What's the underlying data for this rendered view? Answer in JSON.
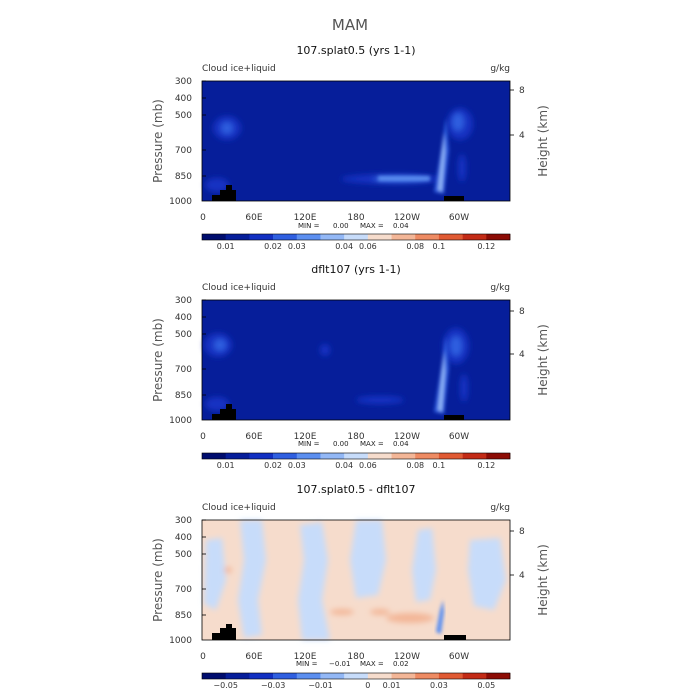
{
  "page_title": "MAM",
  "chart_data": [
    {
      "type": "heatmap",
      "title": "107.splat0.5 (yrs 1-1)",
      "left_label": "Cloud ice+liquid",
      "right_label": "g/kg",
      "ylabel": "Pressure (mb)",
      "ylabel_right": "Height (km)",
      "xticks": [
        "0",
        "60E",
        "120E",
        "180",
        "120W",
        "60W"
      ],
      "yticks": [
        "300",
        "400",
        "500",
        "700",
        "850",
        "1000"
      ],
      "yticks_right": [
        "8",
        "4"
      ],
      "min_label": "MIN =",
      "min_value": "0.00",
      "max_label": "MAX =",
      "max_value": "0.04",
      "colorbar_labels": [
        "0.01",
        "0.02",
        "0.03",
        "0.04",
        "0.06",
        "0.08",
        "0.1",
        "0.12"
      ],
      "colorbar_colors": [
        "#000d6e",
        "#061e9a",
        "#1230c2",
        "#2f5fe0",
        "#5c8ff0",
        "#93b8f6",
        "#c7dcfa",
        "#f6dccc",
        "#f3b697",
        "#ee8b63",
        "#e05a33",
        "#c32b16",
        "#8c0c05"
      ]
    },
    {
      "type": "heatmap",
      "title": "dflt107 (yrs 1-1)",
      "left_label": "Cloud ice+liquid",
      "right_label": "g/kg",
      "ylabel": "Pressure (mb)",
      "ylabel_right": "Height (km)",
      "xticks": [
        "0",
        "60E",
        "120E",
        "180",
        "120W",
        "60W"
      ],
      "yticks": [
        "300",
        "400",
        "500",
        "700",
        "850",
        "1000"
      ],
      "yticks_right": [
        "8",
        "4"
      ],
      "min_label": "MIN =",
      "min_value": "0.00",
      "max_label": "MAX =",
      "max_value": "0.04",
      "colorbar_labels": [
        "0.01",
        "0.02",
        "0.03",
        "0.04",
        "0.06",
        "0.08",
        "0.1",
        "0.12"
      ],
      "colorbar_colors": [
        "#000d6e",
        "#061e9a",
        "#1230c2",
        "#2f5fe0",
        "#5c8ff0",
        "#93b8f6",
        "#c7dcfa",
        "#f6dccc",
        "#f3b697",
        "#ee8b63",
        "#e05a33",
        "#c32b16",
        "#8c0c05"
      ]
    },
    {
      "type": "heatmap",
      "title": "107.splat0.5 - dflt107",
      "left_label": "Cloud ice+liquid",
      "right_label": "g/kg",
      "ylabel": "Pressure (mb)",
      "ylabel_right": "Height (km)",
      "xticks": [
        "0",
        "60E",
        "120E",
        "180",
        "120W",
        "60W"
      ],
      "yticks": [
        "300",
        "400",
        "500",
        "700",
        "850",
        "1000"
      ],
      "yticks_right": [
        "8",
        "4"
      ],
      "min_label": "MIN =",
      "min_value": "−0.01",
      "max_label": "MAX =",
      "max_value": "0.02",
      "colorbar_labels": [
        "−0.05",
        "−0.03",
        "−0.01",
        "0",
        "0.01",
        "0.03",
        "0.05"
      ],
      "colorbar_colors": [
        "#000d6e",
        "#061e9a",
        "#1230c2",
        "#2f5fe0",
        "#5c8ff0",
        "#93b8f6",
        "#c7dcfa",
        "#f6dccc",
        "#f3b697",
        "#ee8b63",
        "#e05a33",
        "#c32b16",
        "#8c0c05"
      ]
    }
  ]
}
